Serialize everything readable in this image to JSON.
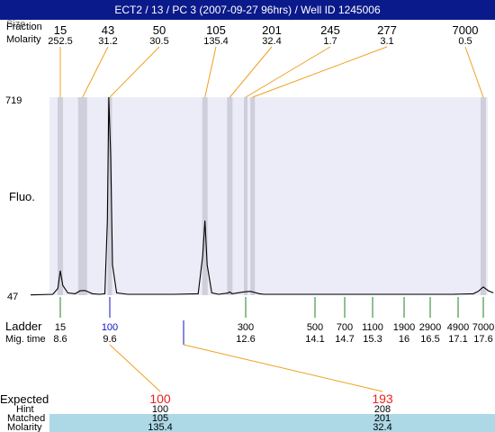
{
  "title": "ECT2 / 13 / PC 3 (2007-09-27 96hrs) / Well ID 1245006",
  "header_labels": {
    "size": "Size",
    "fraction": "Fraction",
    "molarity": "Molarity"
  },
  "y_axis": {
    "max_label": "719",
    "min_label": "47",
    "label": "Fluo."
  },
  "ladder_row_labels": {
    "ladder": "Ladder",
    "mig_time": "Mig. time"
  },
  "bottom_labels": {
    "expected": "Expected",
    "hint": "Hint",
    "matched": "Matched",
    "molarity": "Molarity"
  },
  "colors": {
    "title_bg": "#0b1a8a",
    "plot_bg": "#ececf8",
    "band": "#cfcfdc",
    "connector": "#f0a020",
    "ladder_tick": "#208020",
    "blue_mark": "#1010c0",
    "expected_red": "#ee2020",
    "matched_bg": "#add8e6"
  },
  "chart_data": {
    "type": "line",
    "x_unit": "migration time",
    "ylim": [
      47,
      719
    ],
    "peaks": [
      {
        "size": "15",
        "molarity": "252.5",
        "time": 8.6
      },
      {
        "size": "43",
        "molarity": "31.2",
        "time": 9.05
      },
      {
        "size": "50",
        "molarity": "30.5",
        "time": 9.6
      },
      {
        "size": "105",
        "molarity": "135.4",
        "time": 11.7
      },
      {
        "size": "201",
        "molarity": "32.4",
        "time": 12.25
      },
      {
        "size": "245",
        "molarity": "1.7",
        "time": 12.6
      },
      {
        "size": "277",
        "molarity": "3.1",
        "time": 12.75
      },
      {
        "size": "7000",
        "molarity": "0.5",
        "time": 17.6
      }
    ],
    "ladder": [
      {
        "size": "15",
        "time": "8.6",
        "t": 8.6
      },
      {
        "size": "100",
        "time": "9.6",
        "t": 9.6
      },
      {
        "size": "300",
        "time": "12.6",
        "t": 12.6
      },
      {
        "size": "500",
        "time": "14.1",
        "t": 14.1
      },
      {
        "size": "700",
        "time": "14.7",
        "t": 14.7
      },
      {
        "size": "1100",
        "time": "15.3",
        "t": 15.3
      },
      {
        "size": "1900",
        "time": "16",
        "t": 16.0
      },
      {
        "size": "2900",
        "time": "16.5",
        "t": 16.5
      },
      {
        "size": "4900",
        "time": "17.1",
        "t": 17.1
      },
      {
        "size": "7000",
        "time": "17.6",
        "t": 17.6
      }
    ],
    "trace": [
      [
        8.0,
        48
      ],
      [
        8.45,
        50
      ],
      [
        8.55,
        70
      ],
      [
        8.6,
        130
      ],
      [
        8.65,
        80
      ],
      [
        8.75,
        55
      ],
      [
        8.9,
        52
      ],
      [
        9.0,
        62
      ],
      [
        9.1,
        63
      ],
      [
        9.25,
        52
      ],
      [
        9.4,
        50
      ],
      [
        9.5,
        52
      ],
      [
        9.55,
        300
      ],
      [
        9.58,
        719
      ],
      [
        9.62,
        520
      ],
      [
        9.66,
        150
      ],
      [
        9.75,
        55
      ],
      [
        10.0,
        50
      ],
      [
        11.0,
        50
      ],
      [
        11.55,
        52
      ],
      [
        11.65,
        180
      ],
      [
        11.7,
        300
      ],
      [
        11.75,
        150
      ],
      [
        11.85,
        55
      ],
      [
        12.0,
        50
      ],
      [
        12.2,
        54
      ],
      [
        12.25,
        58
      ],
      [
        12.3,
        52
      ],
      [
        12.55,
        58
      ],
      [
        12.7,
        60
      ],
      [
        12.9,
        52
      ],
      [
        13.0,
        50
      ],
      [
        14.0,
        50
      ],
      [
        15.0,
        50
      ],
      [
        16.0,
        50
      ],
      [
        17.0,
        50
      ],
      [
        17.4,
        52
      ],
      [
        17.5,
        60
      ],
      [
        17.6,
        75
      ],
      [
        17.7,
        62
      ],
      [
        17.8,
        55
      ]
    ],
    "expected": [
      {
        "expected": "100",
        "hint": "100",
        "matched": "105",
        "molarity": "135.4",
        "t": 11.7
      },
      {
        "expected": "193",
        "hint": "208",
        "matched": "201",
        "molarity": "32.4",
        "t": 12.25
      }
    ]
  }
}
